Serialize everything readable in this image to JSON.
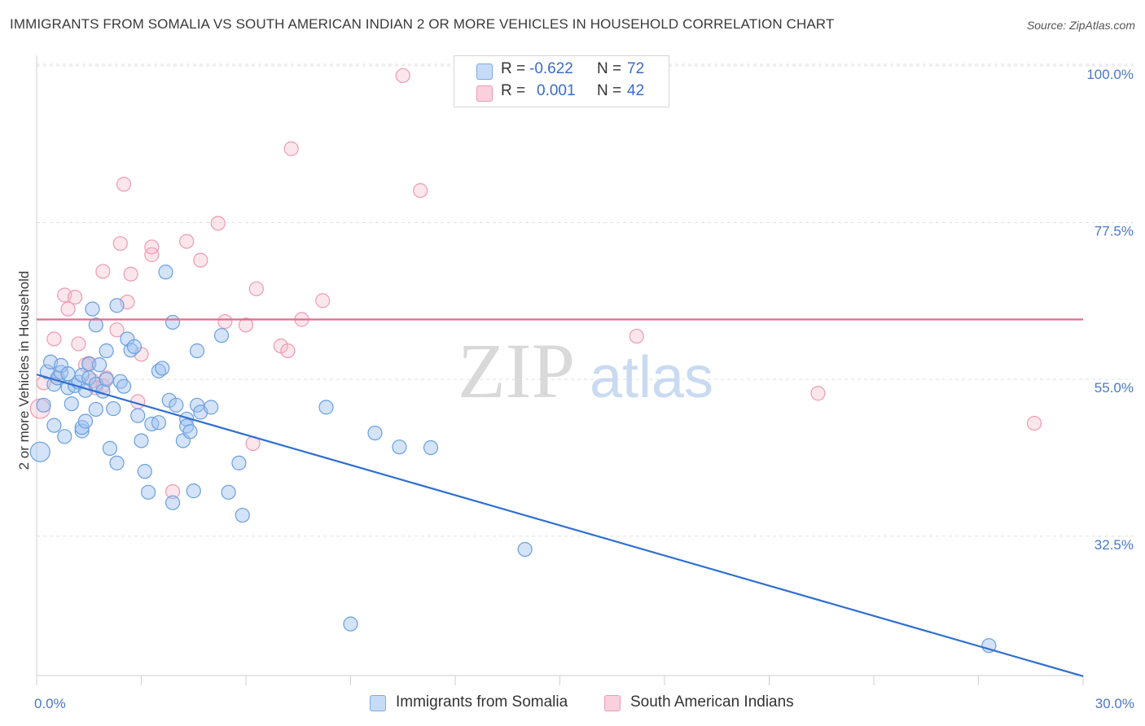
{
  "title": "IMMIGRANTS FROM SOMALIA VS SOUTH AMERICAN INDIAN 2 OR MORE VEHICLES IN HOUSEHOLD CORRELATION CHART",
  "source": "Source: ZipAtlas.com",
  "watermark": {
    "zip": "ZIP",
    "atlas": "atlas"
  },
  "stats": [
    {
      "r_label": "R =",
      "r_value": "-0.622",
      "n_label": "N =",
      "n_value": "72",
      "color": "#9fc2ef"
    },
    {
      "r_label": "R =",
      "r_value": "0.001",
      "n_label": "N =",
      "n_value": "42",
      "color": "#f4b6c8"
    }
  ],
  "legend": [
    {
      "label": "Immigrants from Somalia",
      "color": "#9fc2ef"
    },
    {
      "label": "South American Indians",
      "color": "#f4b6c8"
    }
  ],
  "chart_data": {
    "type": "scatter",
    "xlabel": "",
    "ylabel": "2 or more Vehicles in Household",
    "xlim": [
      0,
      30
    ],
    "ylim": [
      12.5,
      101.5
    ],
    "x_tick_labels": [
      "0.0%",
      "30.0%"
    ],
    "y_ticks": [
      32.5,
      55.0,
      77.5,
      100.0
    ],
    "y_tick_labels": [
      "32.5%",
      "55.0%",
      "77.5%",
      "100.0%"
    ],
    "grid": "horizontal dashed",
    "legend_position": "bottom",
    "series": [
      {
        "name": "Immigrants from Somalia",
        "color": "#6a9fe0",
        "trend": {
          "x": [
            0,
            30
          ],
          "y": [
            55.7,
            12.4
          ]
        },
        "points": [
          [
            0.1,
            44.6
          ],
          [
            0.2,
            51.3
          ],
          [
            0.3,
            56.1
          ],
          [
            0.4,
            57.5
          ],
          [
            0.5,
            48.4
          ],
          [
            0.5,
            54.3
          ],
          [
            0.6,
            55.2
          ],
          [
            0.7,
            56.0
          ],
          [
            0.7,
            57.0
          ],
          [
            0.8,
            46.8
          ],
          [
            0.9,
            55.8
          ],
          [
            0.9,
            53.8
          ],
          [
            1.0,
            51.5
          ],
          [
            1.1,
            54.1
          ],
          [
            1.2,
            54.6
          ],
          [
            1.3,
            47.6
          ],
          [
            1.3,
            48.1
          ],
          [
            1.3,
            55.6
          ],
          [
            1.4,
            49.0
          ],
          [
            1.4,
            53.4
          ],
          [
            1.5,
            57.2
          ],
          [
            1.5,
            55.2
          ],
          [
            1.6,
            65.1
          ],
          [
            1.7,
            54.3
          ],
          [
            1.7,
            50.7
          ],
          [
            1.7,
            62.8
          ],
          [
            1.8,
            57.1
          ],
          [
            1.9,
            53.3
          ],
          [
            2.0,
            55.0
          ],
          [
            2.0,
            59.1
          ],
          [
            2.1,
            45.1
          ],
          [
            2.2,
            50.8
          ],
          [
            2.3,
            43.0
          ],
          [
            2.3,
            65.6
          ],
          [
            2.4,
            54.7
          ],
          [
            2.5,
            54.0
          ],
          [
            2.6,
            60.8
          ],
          [
            2.7,
            59.2
          ],
          [
            2.8,
            59.7
          ],
          [
            2.9,
            49.8
          ],
          [
            3.0,
            46.2
          ],
          [
            3.1,
            41.8
          ],
          [
            3.2,
            38.8
          ],
          [
            3.3,
            48.6
          ],
          [
            3.5,
            48.8
          ],
          [
            3.5,
            56.2
          ],
          [
            3.6,
            56.6
          ],
          [
            3.7,
            70.4
          ],
          [
            3.8,
            52.0
          ],
          [
            3.9,
            37.3
          ],
          [
            3.9,
            63.2
          ],
          [
            4.0,
            51.3
          ],
          [
            4.2,
            46.2
          ],
          [
            4.3,
            49.3
          ],
          [
            4.3,
            48.3
          ],
          [
            4.4,
            47.5
          ],
          [
            4.5,
            39.0
          ],
          [
            4.6,
            51.3
          ],
          [
            4.6,
            59.1
          ],
          [
            4.7,
            50.3
          ],
          [
            5.0,
            51.0
          ],
          [
            5.3,
            61.3
          ],
          [
            5.5,
            38.8
          ],
          [
            5.8,
            43.0
          ],
          [
            5.9,
            35.5
          ],
          [
            8.3,
            51.0
          ],
          [
            9.0,
            19.9
          ],
          [
            9.7,
            47.3
          ],
          [
            10.4,
            45.3
          ],
          [
            11.3,
            45.2
          ],
          [
            14.0,
            30.6
          ],
          [
            27.3,
            16.8
          ]
        ]
      },
      {
        "name": "South American Indians",
        "color": "#ee9ab3",
        "trend": {
          "x": [
            0,
            30
          ],
          "y": [
            63.6,
            63.6
          ]
        },
        "points": [
          [
            0.1,
            50.8
          ],
          [
            0.2,
            54.5
          ],
          [
            0.5,
            60.8
          ],
          [
            0.6,
            55.2
          ],
          [
            0.8,
            67.1
          ],
          [
            0.9,
            65.1
          ],
          [
            1.1,
            66.8
          ],
          [
            1.2,
            60.1
          ],
          [
            1.4,
            57.1
          ],
          [
            1.5,
            57.3
          ],
          [
            1.6,
            54.8
          ],
          [
            1.7,
            53.8
          ],
          [
            1.9,
            54.1
          ],
          [
            1.9,
            70.5
          ],
          [
            2.0,
            55.2
          ],
          [
            2.3,
            62.1
          ],
          [
            2.4,
            74.5
          ],
          [
            2.5,
            83.0
          ],
          [
            2.6,
            66.1
          ],
          [
            2.7,
            70.1
          ],
          [
            2.9,
            51.8
          ],
          [
            3.0,
            58.6
          ],
          [
            3.3,
            72.9
          ],
          [
            3.3,
            74.0
          ],
          [
            3.9,
            38.9
          ],
          [
            4.3,
            74.8
          ],
          [
            4.7,
            72.1
          ],
          [
            5.2,
            77.4
          ],
          [
            5.4,
            63.3
          ],
          [
            6.0,
            62.8
          ],
          [
            6.2,
            45.8
          ],
          [
            6.3,
            68.0
          ],
          [
            7.0,
            59.8
          ],
          [
            7.2,
            59.1
          ],
          [
            7.3,
            88.1
          ],
          [
            7.6,
            63.6
          ],
          [
            8.2,
            66.3
          ],
          [
            10.5,
            98.6
          ],
          [
            11.0,
            82.1
          ],
          [
            17.2,
            61.2
          ],
          [
            22.4,
            53.0
          ],
          [
            28.6,
            48.7
          ]
        ]
      }
    ]
  }
}
